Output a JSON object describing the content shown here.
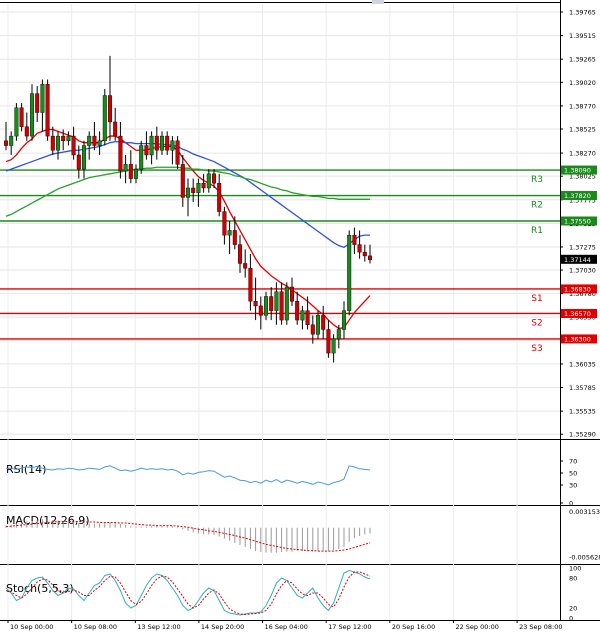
{
  "chart_data": {
    "type": "candlestick",
    "x_labels": [
      "10 Sep 00:00",
      "10 Sep 08:00",
      "13 Sep 12:00",
      "14 Sep 20:00",
      "16 Sep 04:00",
      "17 Sep 12:00",
      "20 Sep 16:00",
      "22 Sep 00:00",
      "23 Sep 08:00"
    ],
    "price_axis": {
      "ticks": [
        "1.39765",
        "1.39515",
        "1.39265",
        "1.39020",
        "1.38770",
        "1.38525",
        "1.38270",
        "1.38025",
        "1.37775",
        "1.37525",
        "1.37275",
        "1.37030",
        "1.36780",
        "1.36530",
        "1.36285",
        "1.36035",
        "1.35785",
        "1.35535",
        "1.35290"
      ],
      "ylim": [
        1.3525,
        1.3985
      ],
      "current": "1.37144",
      "current_value": 1.37144
    },
    "levels": [
      {
        "name": "R3",
        "value": 1.3809,
        "label": "1.38090",
        "color": "#1a8a1a"
      },
      {
        "name": "R2",
        "value": 1.3782,
        "label": "1.37820",
        "color": "#1a8a1a"
      },
      {
        "name": "R1",
        "value": 1.3755,
        "label": "1.37550",
        "color": "#1a8a1a"
      },
      {
        "name": "S1",
        "value": 1.3683,
        "label": "1.36830",
        "color": "#e00000"
      },
      {
        "name": "S2",
        "value": 1.3657,
        "label": "1.36570",
        "color": "#e00000"
      },
      {
        "name": "S3",
        "value": 1.363,
        "label": "1.36300",
        "color": "#e00000"
      }
    ],
    "candles": [
      [
        1.384,
        1.386,
        1.383,
        1.3835
      ],
      [
        1.3835,
        1.385,
        1.3825,
        1.3845
      ],
      [
        1.3845,
        1.388,
        1.384,
        1.3875
      ],
      [
        1.3875,
        1.388,
        1.385,
        1.3855
      ],
      [
        1.3855,
        1.387,
        1.384,
        1.3845
      ],
      [
        1.3845,
        1.39,
        1.384,
        1.389
      ],
      [
        1.389,
        1.3898,
        1.386,
        1.387
      ],
      [
        1.387,
        1.3905,
        1.385,
        1.39
      ],
      [
        1.39,
        1.3905,
        1.384,
        1.3845
      ],
      [
        1.3845,
        1.3855,
        1.3825,
        1.383
      ],
      [
        1.383,
        1.385,
        1.382,
        1.3845
      ],
      [
        1.3845,
        1.3852,
        1.383,
        1.384
      ],
      [
        1.384,
        1.385,
        1.3835,
        1.3845
      ],
      [
        1.3845,
        1.3855,
        1.382,
        1.3825
      ],
      [
        1.3825,
        1.3835,
        1.38,
        1.381
      ],
      [
        1.381,
        1.384,
        1.38,
        1.3835
      ],
      [
        1.3835,
        1.385,
        1.382,
        1.3845
      ],
      [
        1.3845,
        1.386,
        1.383,
        1.3835
      ],
      [
        1.3835,
        1.385,
        1.3825,
        1.384
      ],
      [
        1.384,
        1.3895,
        1.3835,
        1.3888
      ],
      [
        1.3888,
        1.393,
        1.384,
        1.386
      ],
      [
        1.386,
        1.3875,
        1.384,
        1.3845
      ],
      [
        1.3845,
        1.386,
        1.38,
        1.3808
      ],
      [
        1.3808,
        1.3825,
        1.3795,
        1.3815
      ],
      [
        1.3815,
        1.383,
        1.3795,
        1.38
      ],
      [
        1.38,
        1.3815,
        1.3795,
        1.381
      ],
      [
        1.381,
        1.384,
        1.3805,
        1.3835
      ],
      [
        1.3835,
        1.385,
        1.382,
        1.3825
      ],
      [
        1.3825,
        1.385,
        1.3815,
        1.3845
      ],
      [
        1.3845,
        1.3855,
        1.382,
        1.383
      ],
      [
        1.383,
        1.385,
        1.3825,
        1.3845
      ],
      [
        1.3845,
        1.385,
        1.3825,
        1.383
      ],
      [
        1.383,
        1.3845,
        1.3815,
        1.384
      ],
      [
        1.384,
        1.3845,
        1.381,
        1.3815
      ],
      [
        1.3815,
        1.3825,
        1.377,
        1.378
      ],
      [
        1.378,
        1.38,
        1.376,
        1.379
      ],
      [
        1.379,
        1.38,
        1.3775,
        1.3785
      ],
      [
        1.3785,
        1.38,
        1.377,
        1.3795
      ],
      [
        1.3795,
        1.3805,
        1.3785,
        1.379
      ],
      [
        1.379,
        1.381,
        1.3785,
        1.3805
      ],
      [
        1.3805,
        1.381,
        1.379,
        1.3795
      ],
      [
        1.3795,
        1.3805,
        1.376,
        1.3765
      ],
      [
        1.3765,
        1.377,
        1.373,
        1.374
      ],
      [
        1.374,
        1.3755,
        1.372,
        1.3745
      ],
      [
        1.3745,
        1.376,
        1.3725,
        1.373
      ],
      [
        1.373,
        1.374,
        1.37,
        1.371
      ],
      [
        1.371,
        1.3725,
        1.3695,
        1.3705
      ],
      [
        1.3705,
        1.372,
        1.366,
        1.367
      ],
      [
        1.367,
        1.3695,
        1.365,
        1.3665
      ],
      [
        1.3665,
        1.3675,
        1.364,
        1.3655
      ],
      [
        1.3655,
        1.368,
        1.365,
        1.3675
      ],
      [
        1.3675,
        1.3685,
        1.365,
        1.366
      ],
      [
        1.366,
        1.369,
        1.3645,
        1.368
      ],
      [
        1.368,
        1.369,
        1.3645,
        1.365
      ],
      [
        1.365,
        1.369,
        1.3645,
        1.3685
      ],
      [
        1.3685,
        1.3695,
        1.3665,
        1.367
      ],
      [
        1.367,
        1.368,
        1.3645,
        1.365
      ],
      [
        1.365,
        1.3665,
        1.364,
        1.366
      ],
      [
        1.366,
        1.3675,
        1.364,
        1.3645
      ],
      [
        1.3645,
        1.3655,
        1.3625,
        1.3635
      ],
      [
        1.3635,
        1.366,
        1.363,
        1.3655
      ],
      [
        1.3655,
        1.3665,
        1.363,
        1.364
      ],
      [
        1.364,
        1.365,
        1.361,
        1.3615
      ],
      [
        1.3615,
        1.3635,
        1.3605,
        1.363
      ],
      [
        1.363,
        1.3645,
        1.362,
        1.364
      ],
      [
        1.364,
        1.367,
        1.363,
        1.366
      ],
      [
        1.366,
        1.3745,
        1.3655,
        1.374
      ],
      [
        1.374,
        1.3748,
        1.372,
        1.373
      ],
      [
        1.373,
        1.3745,
        1.3715,
        1.3722
      ],
      [
        1.3722,
        1.373,
        1.3712,
        1.3718
      ],
      [
        1.3718,
        1.373,
        1.371,
        1.3714
      ]
    ],
    "series": [
      {
        "name": "",
        "color": "#e00000",
        "values": [
          1.3818,
          1.382,
          1.3825,
          1.3832,
          1.3838,
          1.3842,
          1.3848,
          1.385,
          1.3852,
          1.3852,
          1.385,
          1.3848,
          1.3846,
          1.3844,
          1.384,
          1.3838,
          1.3838,
          1.3838,
          1.3838,
          1.3842,
          1.3845,
          1.3845,
          1.3842,
          1.3838,
          1.3834,
          1.383,
          1.383,
          1.383,
          1.3832,
          1.3833,
          1.3834,
          1.3834,
          1.3834,
          1.383,
          1.3822,
          1.3815,
          1.3808,
          1.3802,
          1.3798,
          1.3795,
          1.3792,
          1.3786,
          1.3776,
          1.3765,
          1.3755,
          1.3745,
          1.3735,
          1.3725,
          1.3715,
          1.3707,
          1.3702,
          1.3697,
          1.3693,
          1.3689,
          1.3686,
          1.3682,
          1.3678,
          1.3674,
          1.367,
          1.3665,
          1.366,
          1.3656,
          1.365,
          1.3645,
          1.3641,
          1.3642,
          1.365,
          1.3658,
          1.3664,
          1.367,
          1.3676
        ]
      },
      {
        "name": "",
        "color": "#3050e0",
        "values": [
          1.3808,
          1.381,
          1.3812,
          1.3814,
          1.3816,
          1.3818,
          1.382,
          1.3822,
          1.3824,
          1.3826,
          1.3827,
          1.3828,
          1.3829,
          1.383,
          1.383,
          1.3831,
          1.3832,
          1.3833,
          1.3834,
          1.3836,
          1.3838,
          1.3839,
          1.3839,
          1.3838,
          1.3838,
          1.3837,
          1.3837,
          1.3837,
          1.3837,
          1.3837,
          1.3836,
          1.3836,
          1.3835,
          1.3834,
          1.3831,
          1.3829,
          1.3826,
          1.3824,
          1.3822,
          1.382,
          1.3818,
          1.3815,
          1.3812,
          1.3809,
          1.3806,
          1.3803,
          1.38,
          1.3796,
          1.3792,
          1.3788,
          1.3784,
          1.378,
          1.3776,
          1.3772,
          1.3768,
          1.3764,
          1.376,
          1.3756,
          1.3752,
          1.3748,
          1.3744,
          1.374,
          1.3736,
          1.3732,
          1.3729,
          1.3727,
          1.3731,
          1.3735,
          1.3739,
          1.374,
          1.374
        ]
      },
      {
        "name": "",
        "color": "#2aa02a",
        "values": [
          1.376,
          1.3762,
          1.3765,
          1.3768,
          1.3771,
          1.3774,
          1.3777,
          1.378,
          1.3783,
          1.3786,
          1.3789,
          1.3791,
          1.3793,
          1.3795,
          1.3797,
          1.3799,
          1.3801,
          1.3802,
          1.3803,
          1.3804,
          1.3805,
          1.3806,
          1.3807,
          1.3808,
          1.3809,
          1.381,
          1.381,
          1.3811,
          1.3811,
          1.3812,
          1.3812,
          1.3812,
          1.3812,
          1.3812,
          1.3811,
          1.3811,
          1.381,
          1.381,
          1.3809,
          1.3808,
          1.3808,
          1.3807,
          1.3806,
          1.3805,
          1.3803,
          1.3802,
          1.38,
          1.3799,
          1.3797,
          1.3795,
          1.3793,
          1.3791,
          1.379,
          1.3788,
          1.3787,
          1.3785,
          1.3784,
          1.3783,
          1.3782,
          1.3781,
          1.3781,
          1.378,
          1.3779,
          1.3779,
          1.3778,
          1.3778,
          1.3778,
          1.3778,
          1.3778,
          1.3778,
          1.3778
        ]
      }
    ],
    "rsi": {
      "title": "RSI(14)",
      "ticks": [
        "70",
        "50",
        "30",
        "0"
      ],
      "ylim": [
        0,
        100
      ],
      "color": "#4a9ae0",
      "values": [
        57,
        58,
        56,
        58,
        60,
        59,
        61,
        58,
        56,
        55,
        57,
        56,
        58,
        57,
        55,
        56,
        58,
        57,
        56,
        60,
        62,
        58,
        54,
        55,
        53,
        55,
        58,
        56,
        57,
        56,
        57,
        55,
        56,
        53,
        47,
        50,
        48,
        51,
        52,
        54,
        53,
        48,
        43,
        45,
        42,
        38,
        37,
        34,
        36,
        33,
        38,
        35,
        39,
        34,
        38,
        36,
        33,
        36,
        34,
        31,
        35,
        33,
        30,
        34,
        36,
        40,
        62,
        60,
        57,
        56,
        55
      ]
    },
    "macd": {
      "title": "MACD(12,26,9)",
      "ticks": [
        "0.003153",
        "-0.005628"
      ],
      "ylim": [
        -0.0066,
        0.0036
      ],
      "hist_color": "#999999",
      "signal_color": "#e00000",
      "hist": [
        0.0004,
        0.0006,
        0.0008,
        0.001,
        0.0012,
        0.0013,
        0.0015,
        0.0016,
        0.0016,
        0.0015,
        0.0014,
        0.0013,
        0.0012,
        0.0011,
        0.0009,
        0.0008,
        0.0008,
        0.0008,
        0.0008,
        0.0009,
        0.001,
        0.0009,
        0.0007,
        0.0005,
        0.0003,
        0.0002,
        0.0002,
        0.0002,
        0.0003,
        0.0003,
        0.0003,
        0.0003,
        0.0003,
        0.0001,
        -0.0003,
        -0.0006,
        -0.0009,
        -0.0011,
        -0.0012,
        -0.0013,
        -0.0014,
        -0.0017,
        -0.0021,
        -0.0025,
        -0.0029,
        -0.0033,
        -0.0037,
        -0.0041,
        -0.0045,
        -0.0047,
        -0.0048,
        -0.0048,
        -0.0048,
        -0.0047,
        -0.0046,
        -0.0046,
        -0.0045,
        -0.0045,
        -0.0045,
        -0.0046,
        -0.0045,
        -0.0044,
        -0.0044,
        -0.0043,
        -0.0041,
        -0.0037,
        -0.0027,
        -0.002,
        -0.0016,
        -0.0013,
        -0.0011
      ],
      "signal": [
        0.0002,
        0.0003,
        0.0004,
        0.0005,
        0.0006,
        0.0007,
        0.0008,
        0.0009,
        0.001,
        0.0011,
        0.0012,
        0.0012,
        0.0012,
        0.0012,
        0.0012,
        0.0011,
        0.0011,
        0.0011,
        0.001,
        0.001,
        0.001,
        0.001,
        0.0009,
        0.0009,
        0.0008,
        0.0007,
        0.0006,
        0.0005,
        0.0005,
        0.0004,
        0.0004,
        0.0004,
        0.0004,
        0.0003,
        0.0002,
        0.0001,
        -0.0001,
        -0.0003,
        -0.0004,
        -0.0006,
        -0.0007,
        -0.0009,
        -0.0011,
        -0.0013,
        -0.0015,
        -0.0018,
        -0.002,
        -0.0023,
        -0.0026,
        -0.0029,
        -0.0032,
        -0.0034,
        -0.0036,
        -0.0038,
        -0.004,
        -0.0041,
        -0.0042,
        -0.0043,
        -0.0044,
        -0.0044,
        -0.0045,
        -0.0045,
        -0.0045,
        -0.0045,
        -0.0044,
        -0.0043,
        -0.0041,
        -0.0038,
        -0.0035,
        -0.0032,
        -0.0029
      ]
    },
    "stoch": {
      "title": "Stoch(5,5,3)",
      "ticks": [
        "100",
        "80",
        "20",
        "0"
      ],
      "ylim": [
        0,
        100
      ],
      "k_color": "#30b0c0",
      "d_color": "#e00000",
      "k": [
        60,
        50,
        35,
        40,
        60,
        75,
        80,
        82,
        70,
        55,
        45,
        50,
        60,
        58,
        45,
        35,
        50,
        65,
        70,
        85,
        88,
        75,
        55,
        30,
        20,
        25,
        45,
        65,
        80,
        88,
        85,
        75,
        60,
        45,
        25,
        15,
        20,
        35,
        50,
        60,
        55,
        35,
        15,
        10,
        8,
        6,
        8,
        10,
        10,
        12,
        25,
        45,
        70,
        80,
        75,
        60,
        45,
        40,
        50,
        60,
        40,
        25,
        15,
        30,
        60,
        90,
        95,
        92,
        88,
        82,
        78
      ],
      "d": [
        55,
        52,
        45,
        40,
        48,
        60,
        72,
        78,
        76,
        66,
        55,
        50,
        53,
        56,
        52,
        45,
        45,
        55,
        63,
        75,
        83,
        82,
        70,
        52,
        35,
        27,
        33,
        48,
        65,
        78,
        84,
        82,
        72,
        58,
        43,
        28,
        20,
        25,
        38,
        50,
        56,
        48,
        32,
        18,
        12,
        8,
        7,
        8,
        9,
        10,
        15,
        28,
        48,
        65,
        75,
        70,
        58,
        48,
        45,
        50,
        50,
        40,
        27,
        22,
        38,
        62,
        82,
        92,
        92,
        88,
        84
      ]
    }
  }
}
